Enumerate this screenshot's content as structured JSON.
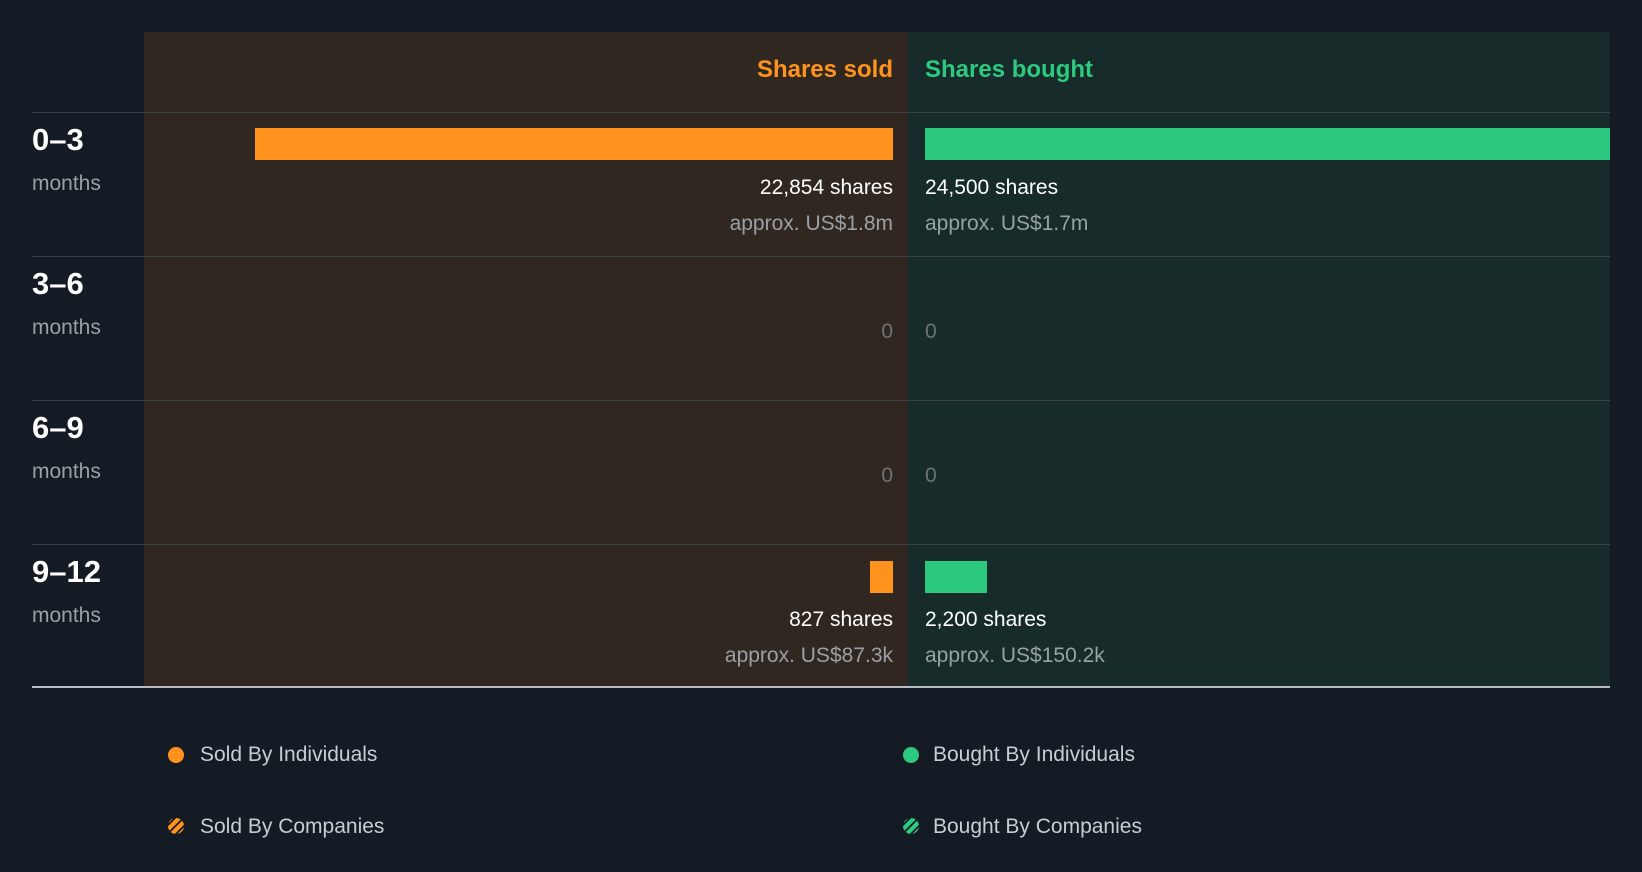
{
  "header": {
    "sold_label": "Shares sold",
    "bought_label": "Shares bought"
  },
  "colors": {
    "sold": "#ff931e",
    "bought": "#2dc97e",
    "sold_panel": "#302721",
    "bought_panel": "#172b2a",
    "background": "#151b24"
  },
  "rows": [
    {
      "range": "0–3",
      "unit": "months",
      "sold": {
        "shares": 22854,
        "shares_label": "22,854 shares",
        "approx": "approx. US$1.8m"
      },
      "bought": {
        "shares": 24500,
        "shares_label": "24,500 shares",
        "approx": "approx. US$1.7m"
      }
    },
    {
      "range": "3–6",
      "unit": "months",
      "sold": {
        "shares": 0,
        "zero_label": "0"
      },
      "bought": {
        "shares": 0,
        "zero_label": "0"
      }
    },
    {
      "range": "6–9",
      "unit": "months",
      "sold": {
        "shares": 0,
        "zero_label": "0"
      },
      "bought": {
        "shares": 0,
        "zero_label": "0"
      }
    },
    {
      "range": "9–12",
      "unit": "months",
      "sold": {
        "shares": 827,
        "shares_label": "827 shares",
        "approx": "approx. US$87.3k"
      },
      "bought": {
        "shares": 2200,
        "shares_label": "2,200 shares",
        "approx": "approx. US$150.2k"
      }
    }
  ],
  "legend": {
    "sold_individuals": "Sold By Individuals",
    "sold_companies": "Sold By Companies",
    "bought_individuals": "Bought By Individuals",
    "bought_companies": "Bought By Companies"
  },
  "chart_data": {
    "type": "bar",
    "title": "",
    "categories": [
      "0–3 months",
      "3–6 months",
      "6–9 months",
      "9–12 months"
    ],
    "series": [
      {
        "name": "Shares sold",
        "values": [
          22854,
          0,
          0,
          827
        ]
      },
      {
        "name": "Shares bought",
        "values": [
          24500,
          0,
          0,
          2200
        ]
      }
    ],
    "xlabel": "",
    "ylabel": "",
    "xlim": [
      0,
      24500
    ],
    "legend": [
      "Sold By Individuals",
      "Sold By Companies",
      "Bought By Individuals",
      "Bought By Companies"
    ]
  }
}
